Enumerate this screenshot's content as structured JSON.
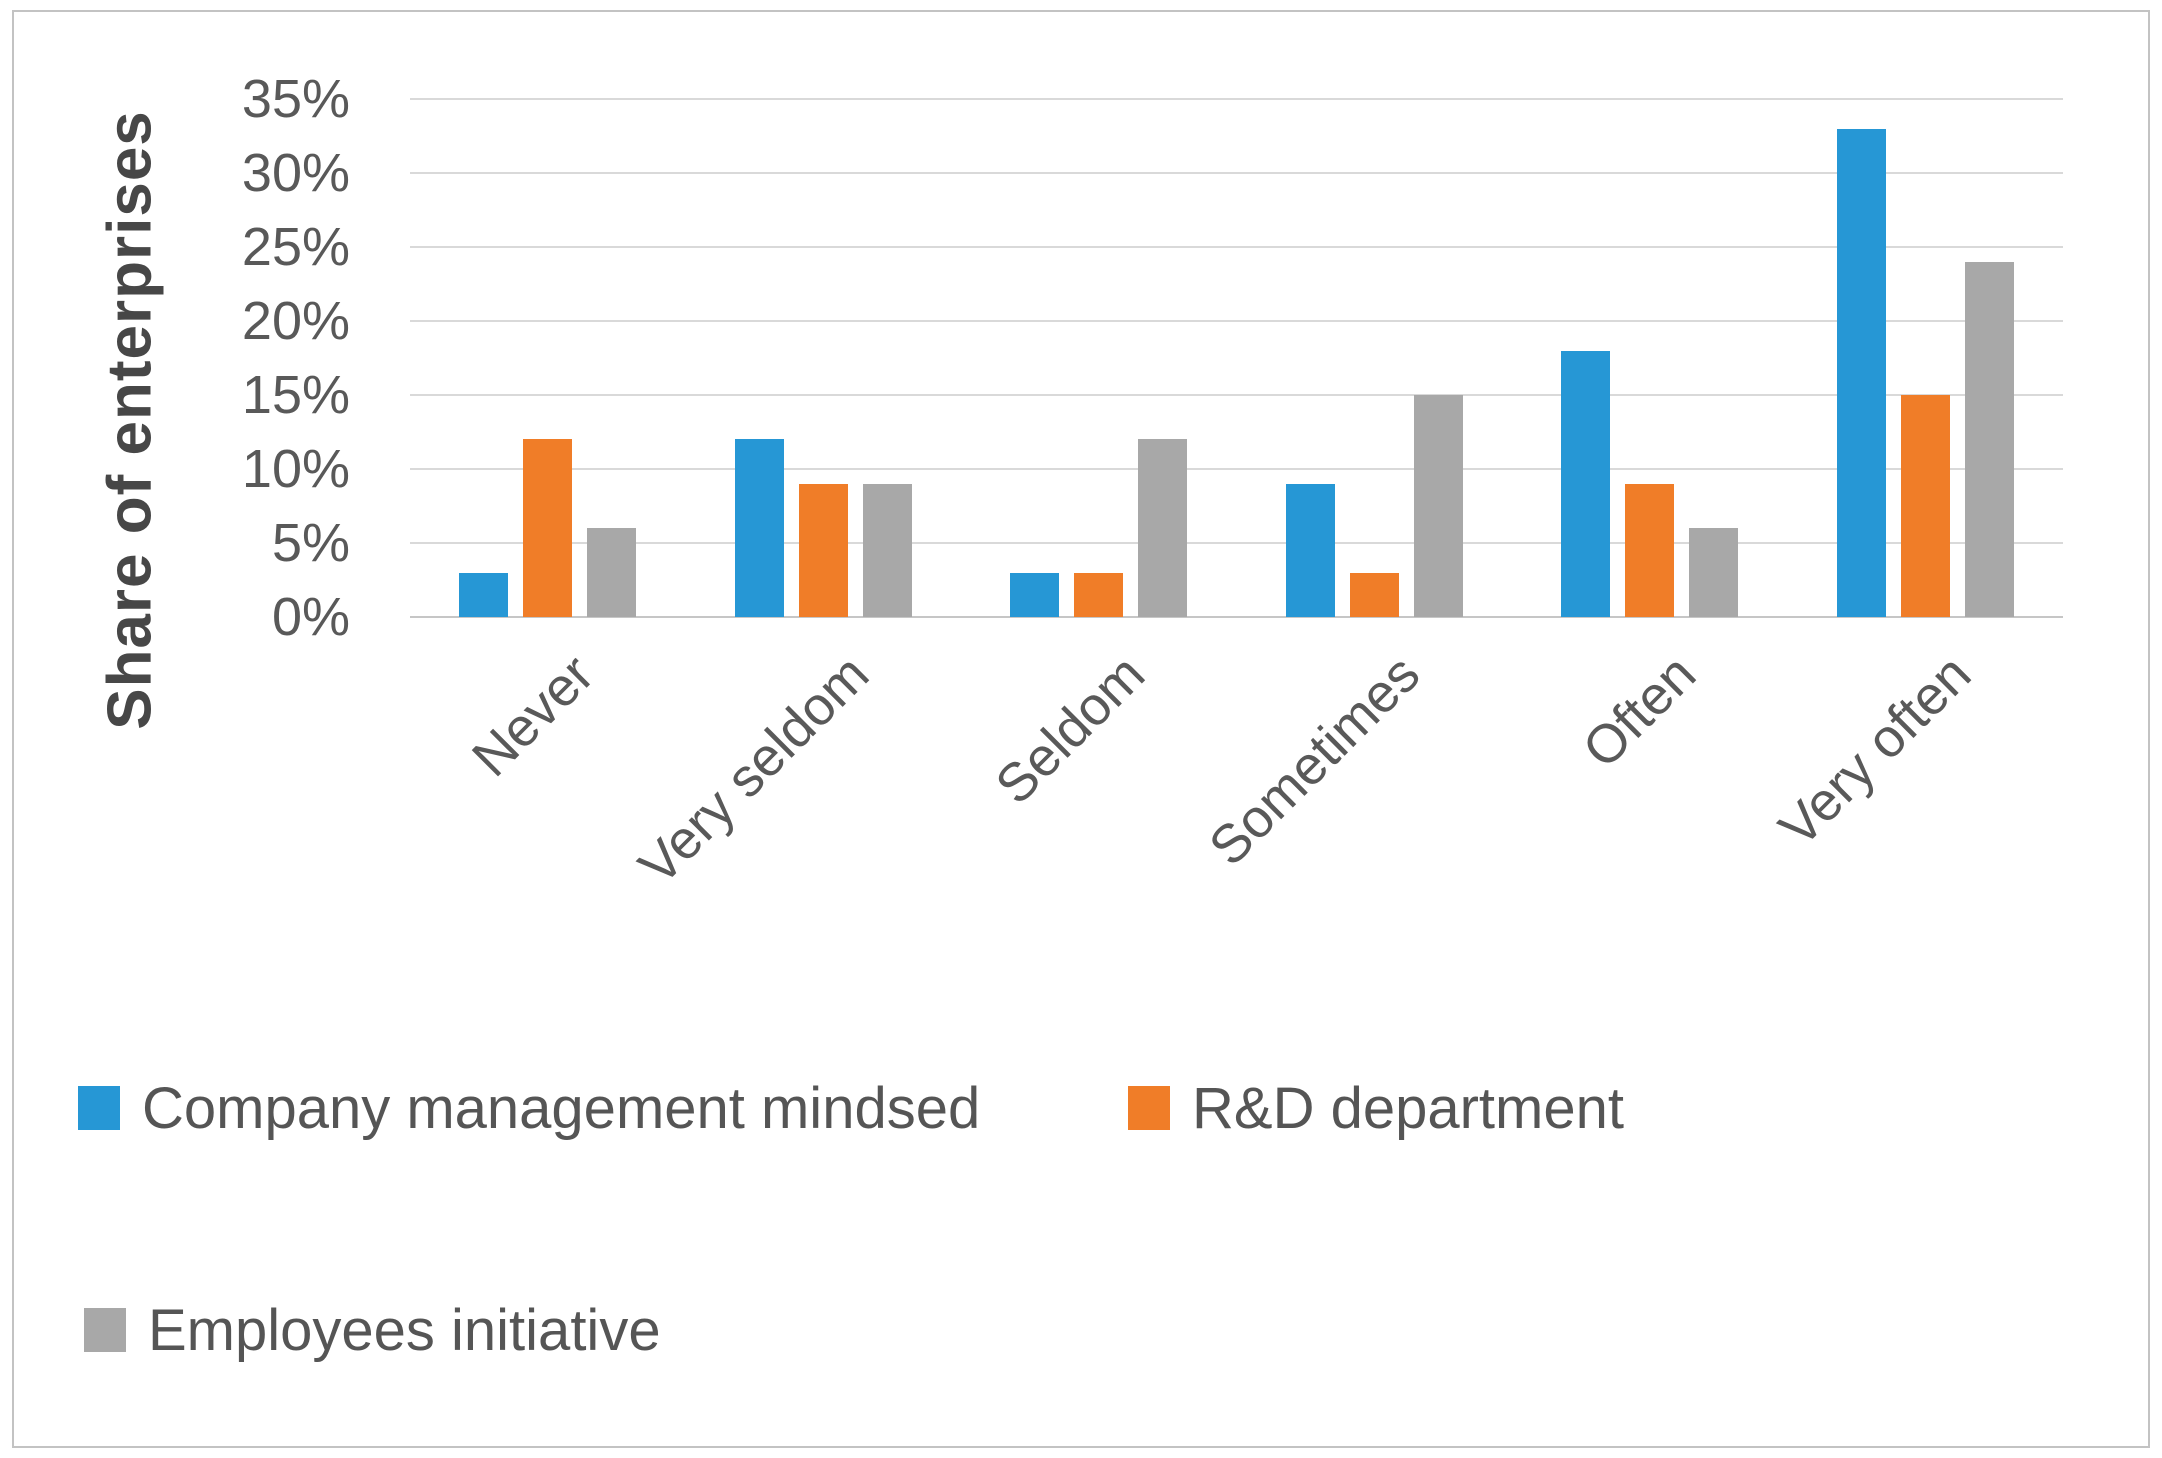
{
  "chart_data": {
    "type": "bar",
    "title": "",
    "ylabel": "Share of enterprises",
    "xlabel": "",
    "categories": [
      "Never",
      "Very seldom",
      "Seldom",
      "Sometimes",
      "Often",
      "Very often"
    ],
    "series": [
      {
        "name": "Company management mindsed",
        "color": "#2697d5",
        "values": [
          3,
          12,
          3,
          9,
          18,
          33
        ]
      },
      {
        "name": "R&D department",
        "color": "#f07d28",
        "values": [
          12,
          9,
          3,
          3,
          9,
          15
        ]
      },
      {
        "name": "Employees initiative",
        "color": "#a8a8a8",
        "values": [
          6,
          9,
          12,
          15,
          6,
          24
        ]
      }
    ],
    "ylim": [
      0,
      35
    ],
    "ytick_step": 5,
    "ytick_labels": [
      "0%",
      "5%",
      "10%",
      "15%",
      "20%",
      "25%",
      "30%",
      "35%"
    ],
    "grid": true,
    "legend_position": "bottom"
  },
  "style": {
    "gridline_color": "#d9d9d9",
    "axis_line_color": "#c6c6c6",
    "tick_text_color": "#595959",
    "legend_text_color": "#555555",
    "ytitle_color": "#474747",
    "background": "#ffffff",
    "border_color": "#c3c3c3"
  }
}
